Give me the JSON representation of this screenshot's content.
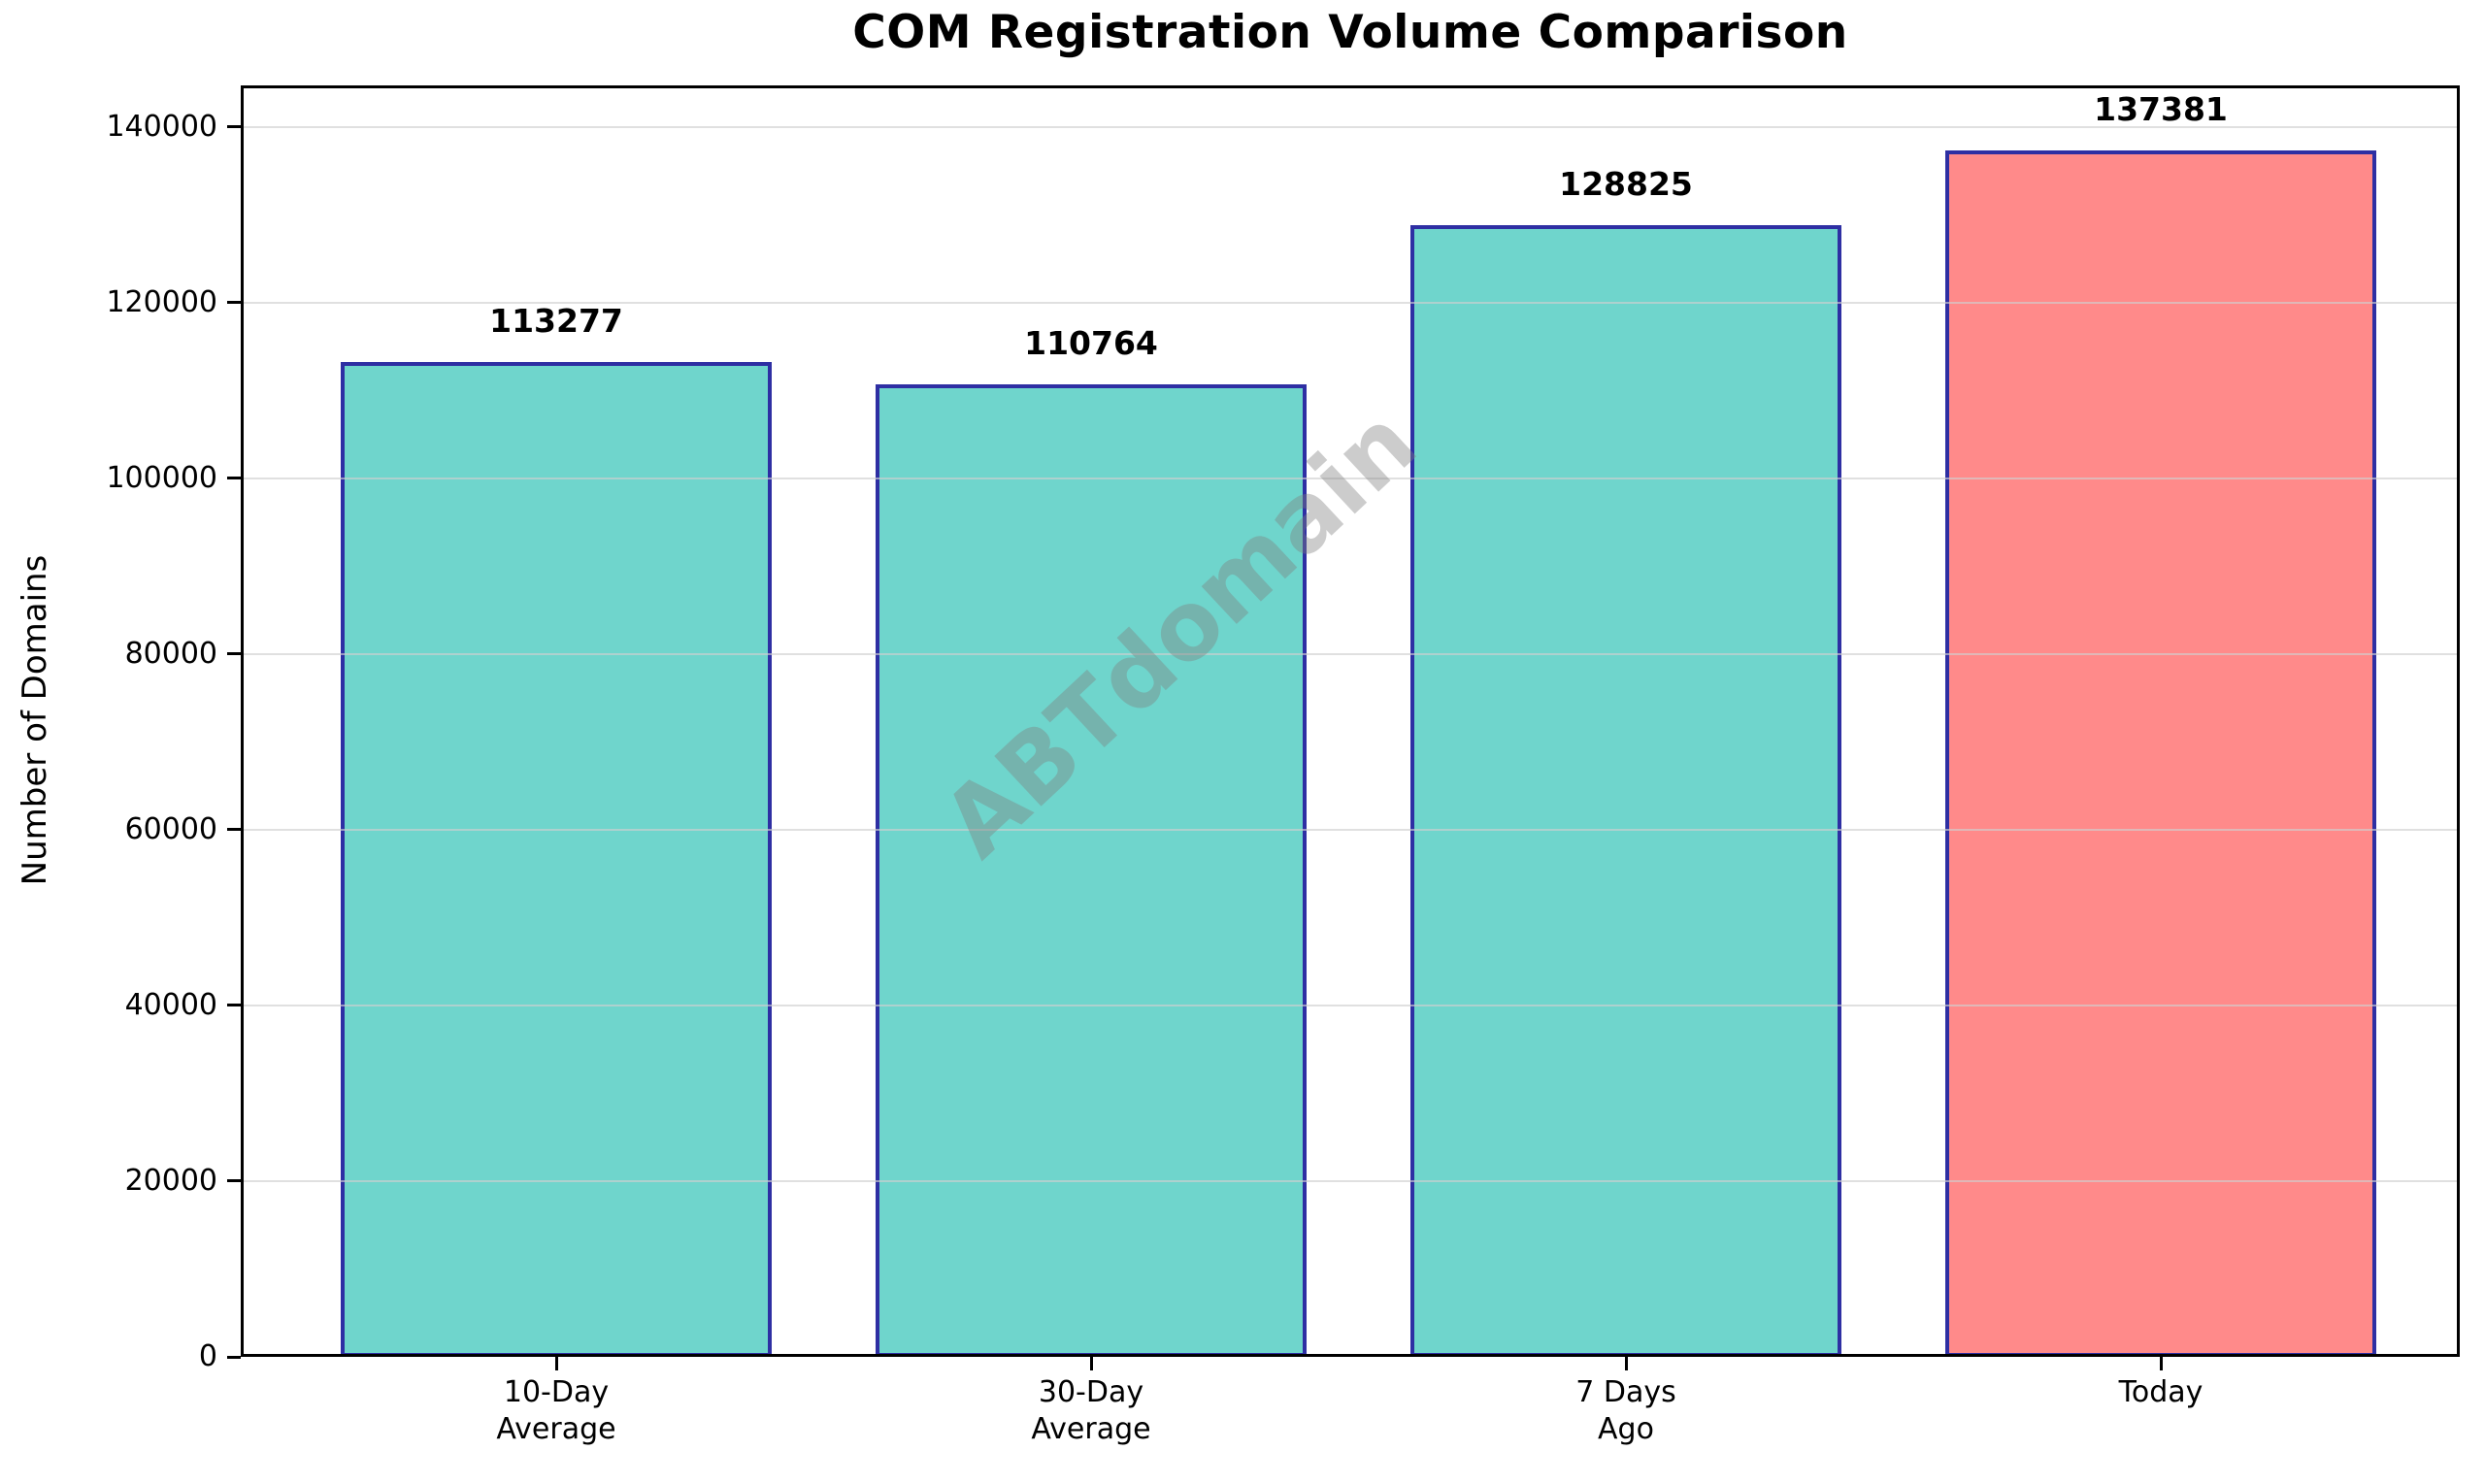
{
  "chart_data": {
    "type": "bar",
    "title": "COM Registration Volume Comparison",
    "ylabel": "Number of Domains",
    "xlabel": "",
    "categories": [
      "10-Day\nAverage",
      "30-Day\nAverage",
      "7 Days\nAgo",
      "Today"
    ],
    "values": [
      113277,
      110764,
      128825,
      137381
    ],
    "value_labels": [
      "113277",
      "110764",
      "128825",
      "137381"
    ],
    "bar_colors": [
      "#6FD5CC",
      "#6FD5CC",
      "#6FD5CC",
      "#FF8A8A"
    ],
    "bar_edge_color": "#2E2FA3",
    "y_ticks": [
      0,
      20000,
      40000,
      60000,
      80000,
      100000,
      120000,
      140000
    ],
    "ylim": [
      0,
      144750
    ],
    "grid": "horizontal-lines-over-bars",
    "gridline_color": "#d0d0d0",
    "legend": "none",
    "watermark": "ABTdomain"
  }
}
